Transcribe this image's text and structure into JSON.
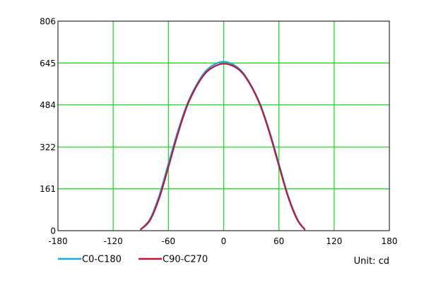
{
  "chart_data": {
    "type": "line",
    "title": "",
    "xlabel": "",
    "ylabel": "",
    "xlim": [
      -180,
      180
    ],
    "ylim": [
      0,
      806
    ],
    "x_ticks": [
      "-180",
      "-120",
      "-60",
      "0",
      "60",
      "120",
      "180"
    ],
    "y_ticks": [
      "0",
      "161",
      "322",
      "484",
      "645",
      "806"
    ],
    "grid": true,
    "grid_color": "#22dd22",
    "unit_text": "Unit: cd",
    "legend_position": "bottom-left",
    "series": [
      {
        "name": "C0-C180",
        "color": "#1aa7e0",
        "x": [
          -90,
          -80,
          -70,
          -60,
          -50,
          -40,
          -30,
          -20,
          -10,
          0,
          10,
          20,
          30,
          40,
          50,
          60,
          70,
          80,
          88
        ],
        "y": [
          5,
          45,
          135,
          258,
          380,
          484,
          558,
          612,
          640,
          650,
          640,
          612,
          558,
          484,
          380,
          258,
          135,
          45,
          5
        ]
      },
      {
        "name": "C90-C270",
        "color": "#c0143c",
        "x": [
          -90,
          -80,
          -70,
          -60,
          -50,
          -40,
          -30,
          -20,
          -10,
          0,
          10,
          20,
          30,
          40,
          50,
          60,
          70,
          80,
          88
        ],
        "y": [
          5,
          40,
          125,
          245,
          370,
          477,
          552,
          605,
          632,
          642,
          634,
          608,
          555,
          480,
          374,
          250,
          130,
          42,
          5
        ]
      }
    ]
  }
}
